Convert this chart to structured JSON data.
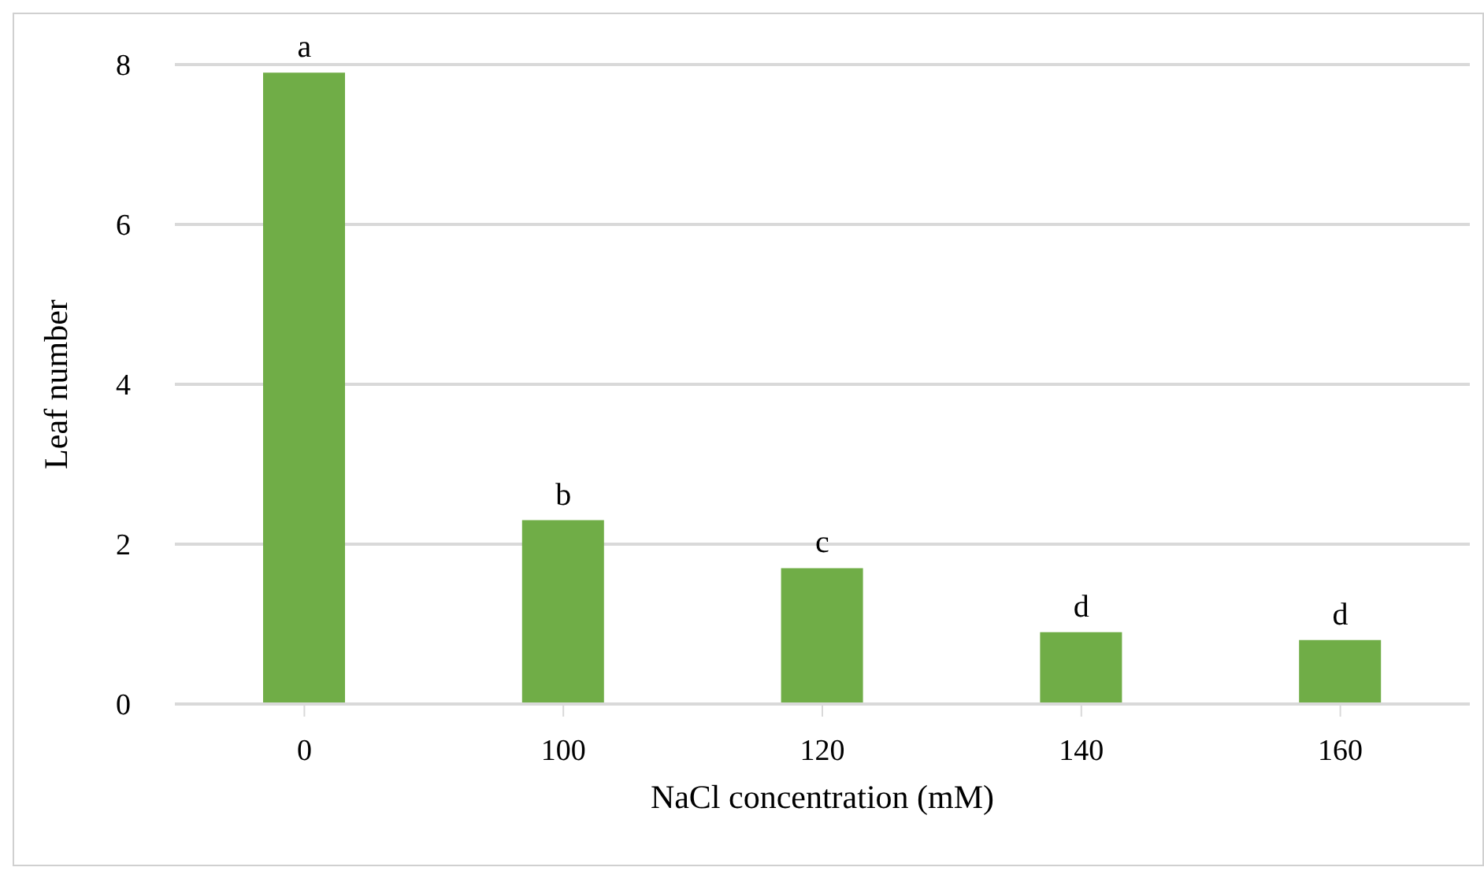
{
  "chart_data": {
    "type": "bar",
    "xlabel": "NaCl concentration (mM)",
    "ylabel": "Leaf number",
    "categories": [
      "0",
      "100",
      "120",
      "140",
      "160"
    ],
    "values": [
      7.9,
      2.3,
      1.7,
      0.9,
      0.8
    ],
    "color": "#70ad47",
    "ylim": [
      0,
      8
    ],
    "yticks": [
      0,
      2,
      4,
      6,
      8
    ],
    "grid": "y",
    "annotations": [
      {
        "text": "a",
        "x": "0",
        "y": 7.9
      },
      {
        "text": "b",
        "x": "100",
        "y": 2.3
      },
      {
        "text": "c",
        "x": "120",
        "y": 1.7
      },
      {
        "text": "d",
        "x": "140",
        "y": 0.9
      },
      {
        "text": "d",
        "x": "160",
        "y": 0.8
      }
    ]
  }
}
